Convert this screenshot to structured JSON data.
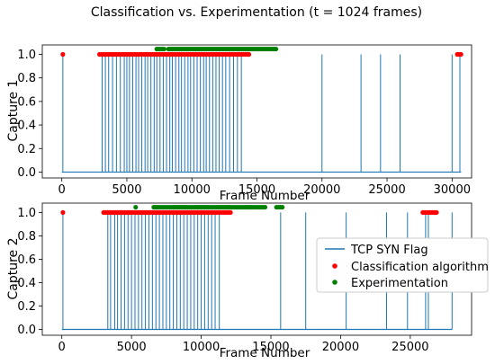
{
  "figure": {
    "title": "Classification vs. Experimentation (t = 1024 frames)"
  },
  "chart_data": [
    {
      "type": "line",
      "ylabel": "Capture 1",
      "xlabel": "Frame Number",
      "xlim": [
        -1500,
        31500
      ],
      "ylim": [
        -0.05,
        1.08
      ],
      "xticks": [
        0,
        5000,
        10000,
        15000,
        20000,
        25000,
        30000
      ],
      "xtick_labels": [
        "0",
        "5000",
        "10000",
        "15000",
        "20000",
        "25000",
        "30000"
      ],
      "yticks": [
        0.0,
        0.2,
        0.4,
        0.6,
        0.8,
        1.0
      ],
      "ytick_labels": [
        "0.0",
        "0.2",
        "0.4",
        "0.6",
        "0.8",
        "1.0"
      ],
      "x_end": 30700,
      "syn_frames": [
        80,
        3100,
        3350,
        3600,
        3900,
        4200,
        4500,
        4800,
        5000,
        5200,
        5450,
        5700,
        5900,
        6150,
        6400,
        6600,
        6850,
        7100,
        7300,
        7550,
        7800,
        8050,
        8300,
        8500,
        8750,
        9000,
        9200,
        9450,
        9700,
        9900,
        10150,
        10400,
        10650,
        10900,
        11100,
        11350,
        11600,
        11850,
        12100,
        12350,
        12600,
        12900,
        13200,
        13500,
        13800,
        20000,
        23000,
        24500,
        26000,
        30000,
        30600
      ],
      "classification": [
        [
          80,
          80
        ],
        [
          2900,
          14400
        ],
        [
          30400,
          30700
        ]
      ],
      "experimentation": [
        [
          7300,
          7900
        ],
        [
          8200,
          16500
        ]
      ],
      "series_colors": {
        "syn": "#1f77b4",
        "classification": "#ff0000",
        "experimentation": "#008000"
      }
    },
    {
      "type": "line",
      "ylabel": "Capture 2",
      "xlabel": "Frame Number",
      "xlim": [
        -1400,
        29400
      ],
      "ylim": [
        -0.05,
        1.08
      ],
      "xticks": [
        0,
        5000,
        10000,
        15000,
        20000,
        25000
      ],
      "xtick_labels": [
        "0",
        "5000",
        "10000",
        "15000",
        "20000",
        "25000"
      ],
      "yticks": [
        0.0,
        0.2,
        0.4,
        0.6,
        0.8,
        1.0
      ],
      "ytick_labels": [
        "0.0",
        "0.2",
        "0.4",
        "0.6",
        "0.8",
        "1.0"
      ],
      "x_end": 28000,
      "syn_frames": [
        80,
        3300,
        3500,
        3800,
        4000,
        4250,
        4500,
        4750,
        5000,
        5250,
        5500,
        5750,
        6000,
        6250,
        6500,
        6750,
        7000,
        7250,
        7500,
        7750,
        8000,
        8250,
        8500,
        8750,
        9000,
        9250,
        9500,
        9750,
        10000,
        10250,
        10500,
        10750,
        11000,
        11300,
        15700,
        17500,
        20400,
        23300,
        24800,
        26100,
        26300,
        28000
      ],
      "classification": [
        [
          80,
          80
        ],
        [
          3000,
          12200
        ],
        [
          25900,
          27000
        ]
      ],
      "experimentation": [
        [
          5300,
          5400
        ],
        [
          6600,
          14700
        ],
        [
          15400,
          15900
        ]
      ],
      "legend": {
        "position": "center-right",
        "entries": [
          "TCP SYN Flag",
          "Classification algorithm",
          "Experimentation"
        ]
      },
      "series_colors": {
        "syn": "#1f77b4",
        "classification": "#ff0000",
        "experimentation": "#008000"
      }
    }
  ]
}
